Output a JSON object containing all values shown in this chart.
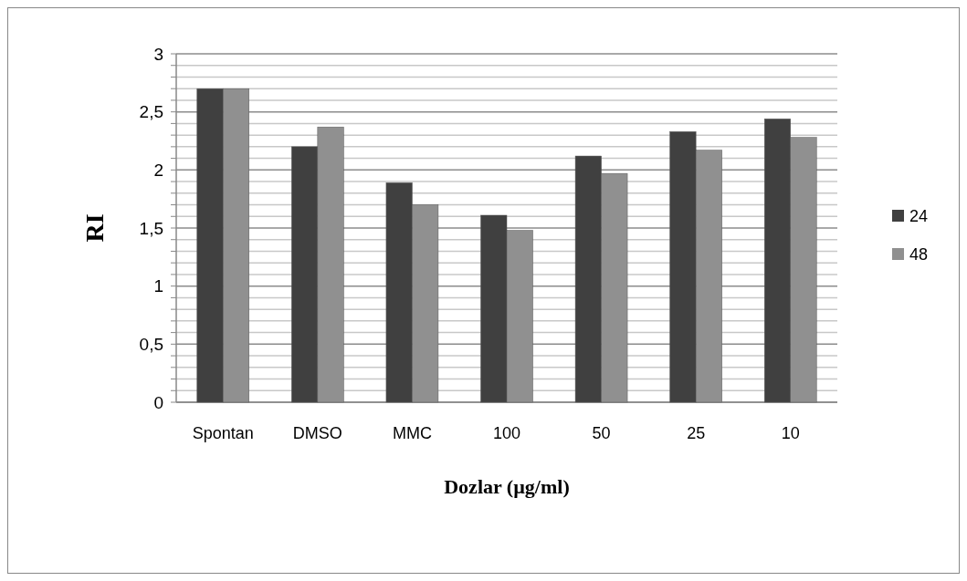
{
  "chart_data": {
    "type": "bar",
    "xlabel": "Dozlar (µg/ml)",
    "ylabel": "RI",
    "categories": [
      "Spontan",
      "DMSO",
      "MMC",
      "100",
      "50",
      "25",
      "10"
    ],
    "series": [
      {
        "name": "24",
        "color": "#404040",
        "values": [
          2.7,
          2.2,
          1.89,
          1.61,
          2.12,
          2.33,
          2.44
        ]
      },
      {
        "name": "48",
        "color": "#909090",
        "values": [
          2.7,
          2.37,
          1.7,
          1.48,
          1.97,
          2.17,
          2.28
        ]
      }
    ],
    "ylim": [
      0,
      3
    ],
    "yticks": [
      0,
      {
        "value": 0.1,
        "label": null
      },
      {
        "value": 0.2,
        "label": null
      },
      {
        "value": 0.3,
        "label": null
      },
      {
        "value": 0.4,
        "label": null
      },
      {
        "value": 0.5,
        "label": "0,5"
      },
      {
        "value": 0.6,
        "label": null
      },
      {
        "value": 0.7,
        "label": null
      },
      {
        "value": 0.8,
        "label": null
      },
      {
        "value": 0.9,
        "label": null
      },
      1,
      {
        "value": 1.1,
        "label": null
      },
      {
        "value": 1.2,
        "label": null
      },
      {
        "value": 1.3,
        "label": null
      },
      {
        "value": 1.4,
        "label": null
      },
      {
        "value": 1.5,
        "label": "1,5"
      },
      {
        "value": 1.6,
        "label": null
      },
      {
        "value": 1.7,
        "label": null
      },
      {
        "value": 1.8,
        "label": null
      },
      {
        "value": 1.9,
        "label": null
      },
      2,
      {
        "value": 2.1,
        "label": null
      },
      {
        "value": 2.2,
        "label": null
      },
      {
        "value": 2.3,
        "label": null
      },
      {
        "value": 2.4,
        "label": null
      },
      {
        "value": 2.5,
        "label": "2,5"
      },
      {
        "value": 2.6,
        "label": null
      },
      {
        "value": 2.7,
        "label": null
      },
      {
        "value": 2.8,
        "label": null
      },
      {
        "value": 2.9,
        "label": null
      },
      3
    ],
    "grid": "y",
    "legend": "right"
  }
}
